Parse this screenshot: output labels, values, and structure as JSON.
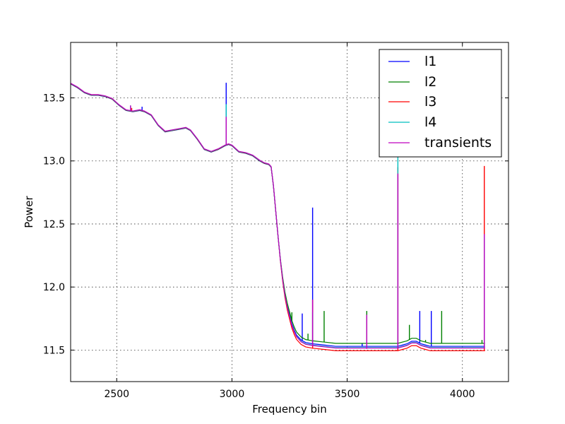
{
  "chart_data": {
    "type": "line",
    "title": "",
    "xlabel": "Frequency bin",
    "ylabel": "Power",
    "xlim": [
      2300,
      4200
    ],
    "ylim": [
      11.25,
      13.94
    ],
    "xticks": [
      2500,
      3000,
      3500,
      4000
    ],
    "yticks": [
      11.5,
      12.0,
      12.5,
      13.0,
      13.5
    ],
    "xtick_labels": [
      "2500",
      "3000",
      "3500",
      "4000"
    ],
    "ytick_labels": [
      "11.5",
      "12.0",
      "12.5",
      "13.0",
      "13.5"
    ],
    "grid": true,
    "legend_position": "top-right",
    "baseline_curve": {
      "x": [
        2300,
        2330,
        2360,
        2390,
        2420,
        2450,
        2480,
        2510,
        2540,
        2570,
        2600,
        2620,
        2650,
        2680,
        2710,
        2740,
        2770,
        2800,
        2820,
        2850,
        2880,
        2910,
        2940,
        2970,
        2985,
        3000,
        3030,
        3060,
        3090,
        3120,
        3140,
        3160,
        3170,
        3180,
        3190,
        3200,
        3210,
        3220,
        3230,
        3240,
        3250,
        3260,
        3270,
        3280,
        3300,
        3320,
        3350,
        3400,
        3450,
        3500,
        3550,
        3600,
        3650,
        3700,
        3720,
        3740,
        3760,
        3780,
        3800,
        3810,
        3820,
        3840,
        3860,
        3900,
        3950,
        4000,
        4050,
        4098
      ],
      "y": [
        13.61,
        13.58,
        13.54,
        13.52,
        13.52,
        13.51,
        13.49,
        13.44,
        13.4,
        13.39,
        13.4,
        13.39,
        13.36,
        13.28,
        13.23,
        13.24,
        13.25,
        13.26,
        13.24,
        13.17,
        13.09,
        13.07,
        13.09,
        13.12,
        13.13,
        13.12,
        13.07,
        13.06,
        13.04,
        13.0,
        12.98,
        12.97,
        12.95,
        12.8,
        12.6,
        12.4,
        12.22,
        12.07,
        11.95,
        11.86,
        11.79,
        11.72,
        11.67,
        11.63,
        11.59,
        11.57,
        11.56,
        11.55,
        11.54,
        11.54,
        11.54,
        11.54,
        11.54,
        11.54,
        11.54,
        11.55,
        11.56,
        11.58,
        11.58,
        11.57,
        11.56,
        11.55,
        11.54,
        11.54,
        11.54,
        11.54,
        11.54,
        11.54
      ]
    },
    "series": [
      {
        "name": "l1",
        "color": "#0000ff",
        "low_offset": -0.01,
        "spikes": [
          [
            2610,
            13.43
          ],
          [
            2975,
            13.62
          ],
          [
            3305,
            11.79
          ],
          [
            3350,
            12.63
          ],
          [
            3565,
            11.55
          ],
          [
            3815,
            11.81
          ],
          [
            3865,
            11.81
          ]
        ]
      },
      {
        "name": "l2",
        "color": "#008000",
        "low_offset": 0.012,
        "spikes": [
          [
            3260,
            11.8
          ],
          [
            3330,
            11.63
          ],
          [
            3400,
            11.81
          ],
          [
            3585,
            11.81
          ],
          [
            3770,
            11.7
          ],
          [
            3840,
            11.58
          ],
          [
            3910,
            11.81
          ],
          [
            4085,
            11.58
          ]
        ]
      },
      {
        "name": "l3",
        "color": "#ff0000",
        "low_offset": -0.048,
        "spikes": [
          [
            2565,
            13.42
          ],
          [
            2975,
            13.3
          ],
          [
            3350,
            11.9
          ],
          [
            3720,
            12.95
          ],
          [
            4095,
            12.96
          ]
        ]
      },
      {
        "name": "l4",
        "color": "#00bfbf",
        "low_offset": -0.025,
        "spikes": [
          [
            2560,
            13.44
          ],
          [
            2975,
            13.45
          ],
          [
            3350,
            11.8
          ],
          [
            3720,
            13.03
          ],
          [
            4095,
            12.4
          ]
        ]
      },
      {
        "name": "transients",
        "color": "#bf00bf",
        "low_offset": -0.03,
        "spikes": [
          [
            2560,
            13.44
          ],
          [
            2975,
            13.35
          ],
          [
            3350,
            11.9
          ],
          [
            3585,
            11.78
          ],
          [
            3720,
            12.9
          ],
          [
            4095,
            12.42
          ]
        ]
      }
    ]
  }
}
